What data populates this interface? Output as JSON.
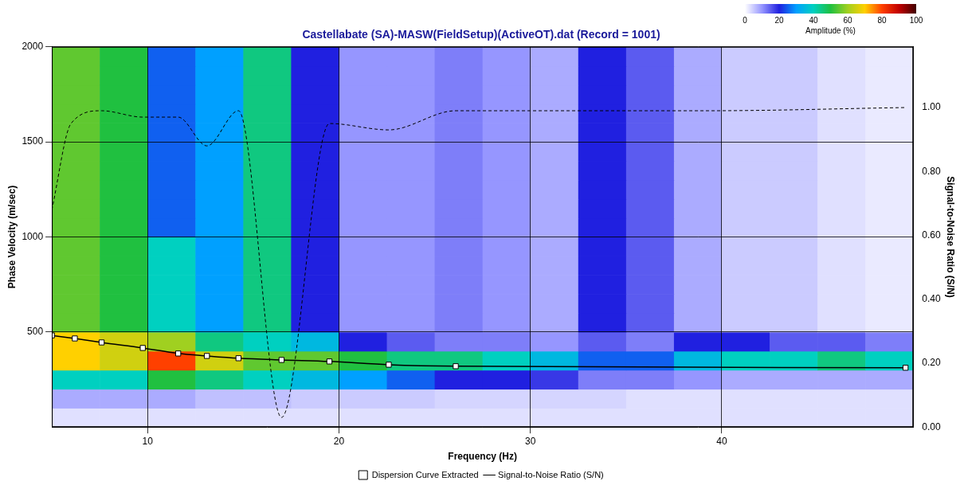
{
  "chart_data": {
    "type": "line",
    "title": "Castellabate (SA)-MASW(FieldSetup)(ActiveOT).dat (Record = 1001)",
    "x_label": "Frequency (Hz)",
    "y_label": "Phase Velocity (m/sec)",
    "y2_label": "Signal-to-Noise Ratio (S/N)",
    "xlim": [
      5,
      50
    ],
    "xticks": [
      10,
      20,
      30,
      40
    ],
    "ylim": [
      0,
      2000
    ],
    "yticks": [
      500,
      1000,
      1500,
      2000
    ],
    "y2lim": [
      0,
      1.19
    ],
    "y2ticks": [
      {
        "value": 0,
        "label": "0.00"
      },
      {
        "value": 0.2,
        "label": "0.20"
      },
      {
        "value": 0.4,
        "label": "0.40"
      },
      {
        "value": 0.6,
        "label": "0.60"
      },
      {
        "value": 0.8,
        "label": "0.80"
      },
      {
        "value": 1,
        "label": "1.00"
      }
    ],
    "grid": true,
    "legend": "bottom",
    "series": [
      {
        "name": "Dispersion Curve Extracted",
        "color": "#000000",
        "marker": "square",
        "line_style": "solid",
        "x": [
          5.0,
          6.2,
          7.6,
          9.75,
          11.6,
          13.1,
          14.75,
          17.0,
          19.5,
          22.6,
          26.1,
          49.6
        ],
        "values": [
          482,
          466,
          445,
          416,
          387,
          374,
          362,
          353,
          345,
          328,
          320,
          312
        ]
      },
      {
        "name": "Signal-to-Noise Ratio (S/N)",
        "color": "#000000",
        "marker": "none",
        "line_style": "dashed",
        "axis": "y2",
        "x": [
          5.0,
          6.0,
          7.6,
          9.75,
          11.6,
          13.1,
          14.75,
          17.0,
          19.5,
          22.6,
          26.1,
          31.0,
          39.3,
          49.6
        ],
        "values": [
          0.68,
          0.95,
          0.99,
          0.97,
          0.97,
          0.88,
          0.99,
          0.03,
          0.95,
          0.93,
          0.99,
          0.99,
          0.99,
          1.0
        ]
      }
    ],
    "heatmap": {
      "x_bins": [
        5,
        7.5,
        10,
        12.5,
        15,
        17.5,
        20,
        22.5,
        25,
        27.5,
        30,
        32.5,
        35,
        37.5,
        40,
        42.5,
        45,
        47.5,
        50
      ],
      "y_bins": [
        0,
        100,
        200,
        300,
        400,
        500,
        600,
        700,
        800,
        900,
        1000,
        1100,
        1200,
        1300,
        1400,
        1500,
        1600,
        1700,
        1800,
        1900,
        2000
      ],
      "cells": [
        [
          3,
          3,
          3,
          3,
          3,
          3,
          3,
          3,
          3,
          3,
          3,
          3,
          3,
          3,
          3,
          3,
          3,
          3
        ],
        [
          8,
          8,
          8,
          6,
          6,
          5,
          5,
          5,
          4,
          4,
          4,
          4,
          3,
          3,
          3,
          3,
          3,
          3
        ],
        [
          40,
          40,
          50,
          45,
          40,
          35,
          30,
          25,
          20,
          20,
          18,
          12,
          12,
          10,
          8,
          8,
          8,
          8
        ],
        [
          70,
          65,
          80,
          65,
          55,
          55,
          50,
          45,
          45,
          40,
          35,
          25,
          25,
          35,
          40,
          40,
          45,
          40
        ],
        [
          70,
          65,
          60,
          45,
          40,
          35,
          20,
          15,
          12,
          12,
          10,
          15,
          12,
          20,
          20,
          15,
          15,
          12
        ],
        [
          55,
          50,
          40,
          30,
          45,
          20,
          10,
          10,
          12,
          10,
          8,
          20,
          15,
          8,
          5,
          5,
          3,
          2
        ],
        [
          55,
          50,
          40,
          30,
          45,
          20,
          10,
          10,
          12,
          10,
          8,
          20,
          15,
          8,
          5,
          5,
          3,
          2
        ],
        [
          55,
          50,
          40,
          30,
          45,
          20,
          10,
          10,
          12,
          10,
          8,
          20,
          15,
          8,
          5,
          5,
          3,
          2
        ],
        [
          55,
          50,
          40,
          30,
          45,
          20,
          10,
          10,
          12,
          10,
          8,
          20,
          15,
          8,
          5,
          5,
          3,
          2
        ],
        [
          55,
          50,
          40,
          30,
          45,
          20,
          10,
          10,
          12,
          10,
          8,
          20,
          15,
          8,
          5,
          5,
          3,
          2
        ],
        [
          55,
          50,
          25,
          30,
          45,
          20,
          10,
          10,
          12,
          10,
          8,
          20,
          15,
          8,
          5,
          5,
          3,
          2
        ],
        [
          55,
          50,
          25,
          30,
          45,
          20,
          10,
          10,
          12,
          10,
          8,
          20,
          15,
          8,
          5,
          5,
          3,
          2
        ],
        [
          55,
          50,
          25,
          30,
          45,
          20,
          10,
          10,
          12,
          10,
          8,
          20,
          15,
          8,
          5,
          5,
          3,
          2
        ],
        [
          55,
          50,
          25,
          30,
          45,
          20,
          10,
          10,
          12,
          10,
          8,
          20,
          15,
          8,
          5,
          5,
          3,
          2
        ],
        [
          55,
          50,
          25,
          30,
          45,
          20,
          10,
          10,
          12,
          10,
          8,
          20,
          15,
          8,
          5,
          5,
          3,
          2
        ],
        [
          55,
          50,
          25,
          30,
          45,
          20,
          10,
          10,
          12,
          10,
          8,
          20,
          15,
          8,
          5,
          5,
          3,
          2
        ],
        [
          55,
          50,
          25,
          30,
          45,
          20,
          10,
          10,
          12,
          10,
          8,
          20,
          15,
          8,
          5,
          5,
          3,
          2
        ],
        [
          55,
          50,
          25,
          30,
          45,
          20,
          10,
          10,
          12,
          10,
          8,
          20,
          15,
          8,
          5,
          5,
          3,
          2
        ],
        [
          55,
          50,
          25,
          30,
          45,
          20,
          10,
          10,
          12,
          10,
          8,
          20,
          15,
          8,
          5,
          5,
          3,
          2
        ],
        [
          55,
          50,
          25,
          30,
          45,
          20,
          10,
          10,
          12,
          10,
          8,
          20,
          15,
          8,
          5,
          5,
          3,
          2
        ]
      ]
    },
    "color_bar": {
      "label": "Amplitude (%)",
      "range": [
        0,
        100
      ],
      "ticks": [
        0,
        20,
        40,
        60,
        80,
        100
      ]
    }
  }
}
